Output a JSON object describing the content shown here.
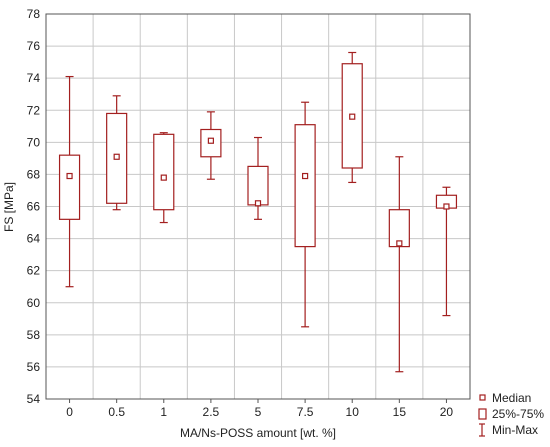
{
  "chart_data": {
    "type": "boxplot",
    "xlabel": "MA/Ns-POSS amount [wt. %]",
    "ylabel": "FS [MPa]",
    "ylim": [
      54,
      78
    ],
    "yticks": [
      54,
      56,
      58,
      60,
      62,
      64,
      66,
      68,
      70,
      72,
      74,
      76,
      78
    ],
    "grid": true,
    "legend_position": "bottom-right",
    "categories": [
      "0",
      "0.5",
      "1",
      "2.5",
      "5",
      "7.5",
      "10",
      "15",
      "20"
    ],
    "median": [
      67.9,
      69.1,
      67.8,
      70.1,
      66.2,
      67.9,
      71.6,
      63.7,
      66.0
    ],
    "q1": [
      65.2,
      66.2,
      65.8,
      69.1,
      66.1,
      63.5,
      68.4,
      63.5,
      65.9
    ],
    "q3": [
      69.2,
      71.8,
      70.5,
      70.8,
      68.5,
      71.1,
      74.9,
      65.8,
      66.7
    ],
    "min": [
      61.0,
      65.8,
      65.0,
      67.7,
      65.2,
      58.5,
      67.5,
      55.7,
      59.2
    ],
    "max": [
      74.1,
      72.9,
      70.6,
      71.9,
      70.3,
      72.5,
      75.6,
      69.1,
      67.2
    ],
    "legend": [
      "Median",
      "25%-75%",
      "Min-Max"
    ],
    "colors": {
      "series": "#a31f1f",
      "grid": "#c8c8c8",
      "axis": "#555555"
    }
  }
}
